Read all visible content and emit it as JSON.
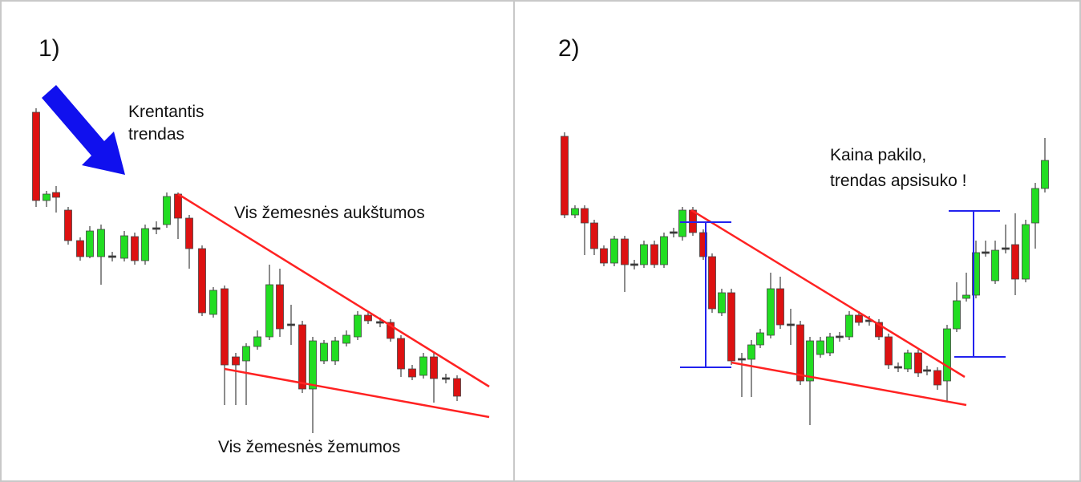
{
  "panels": [
    {
      "label": "1)",
      "trend_note": [
        "Krentantis",
        "trendas"
      ],
      "upper_note": "Vis žemesnės aukštumos",
      "lower_note": "Vis žemesnės žemumos"
    },
    {
      "label": "2)",
      "breakout_note": [
        "Kaina pakilo,",
        "trendas apsisuko !"
      ]
    }
  ]
}
